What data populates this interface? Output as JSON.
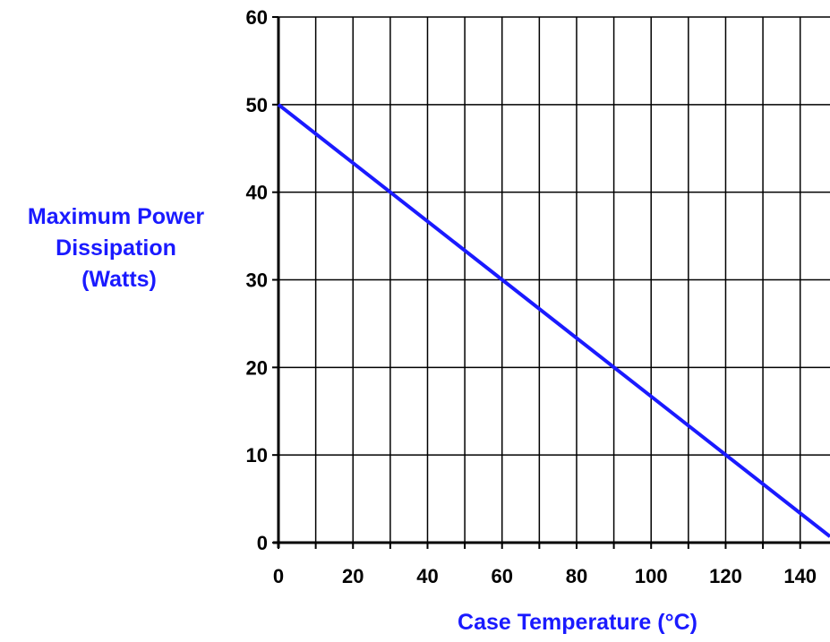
{
  "chart_data": {
    "type": "line",
    "title": "",
    "xlabel": "Case Temperature (°C)",
    "ylabel_lines": [
      "Maximum Power",
      "Dissipation",
      "(Watts)"
    ],
    "xlim": [
      0,
      148
    ],
    "ylim": [
      0,
      60
    ],
    "x_tick_labels": [
      "0",
      "20",
      "40",
      "60",
      "80",
      "100",
      "120",
      "140"
    ],
    "x_tick_values": [
      0,
      20,
      40,
      60,
      80,
      100,
      120,
      140
    ],
    "x_grid_step": 10,
    "y_tick_labels": [
      "0",
      "10",
      "20",
      "30",
      "40",
      "50",
      "60"
    ],
    "y_tick_values": [
      0,
      10,
      20,
      30,
      40,
      50,
      60
    ],
    "grid": true,
    "series": [
      {
        "x": [
          0,
          148
        ],
        "y": [
          50,
          0.7
        ],
        "color": "#1a1aff"
      }
    ],
    "colors": {
      "line": "#1a1aff",
      "label": "#1a1aff",
      "grid": "#000000"
    }
  }
}
